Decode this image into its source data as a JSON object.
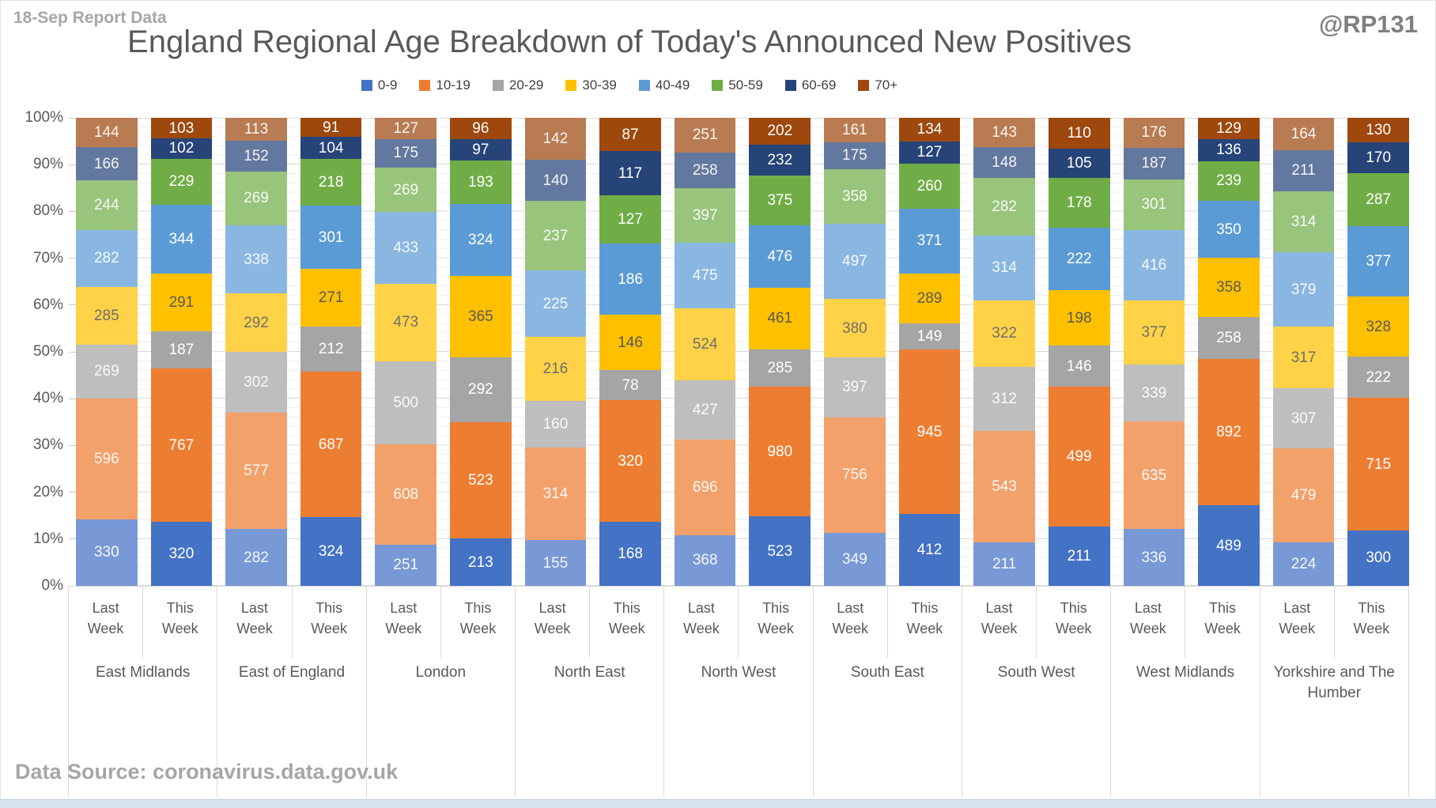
{
  "header": {
    "report_tag": "18-Sep Report Data",
    "handle": "@RP131",
    "title": "England Regional Age Breakdown of Today's Announced New Positives"
  },
  "footer": {
    "data_source": "Data Source: coronavirus.data.gov.uk"
  },
  "axis": {
    "y_ticks": [
      "0%",
      "10%",
      "20%",
      "30%",
      "40%",
      "50%",
      "60%",
      "70%",
      "80%",
      "90%",
      "100%"
    ],
    "week_labels": [
      "Last Week",
      "This Week"
    ]
  },
  "chart_data": {
    "type": "bar",
    "stacked": true,
    "normalized": "percent",
    "title": "England Regional Age Breakdown of Today's Announced New Positives",
    "ylabel": "",
    "ylim_percent": [
      0,
      100
    ],
    "grid": {
      "major_percent": 10,
      "minor_percent": 2
    },
    "legend_position": "top-center",
    "age_groups": [
      "0-9",
      "10-19",
      "20-29",
      "30-39",
      "40-49",
      "50-59",
      "60-69",
      "70+"
    ],
    "palette": {
      "0-9": "#4472C4",
      "10-19": "#ED7D31",
      "20-29": "#A5A5A5",
      "30-39": "#FFC000",
      "40-49": "#5B9BD5",
      "50-59": "#70AD47",
      "60-69": "#264478",
      "70+": "#9E480E"
    },
    "last_week_fade": 0.72,
    "regions": [
      {
        "name": "East Midlands",
        "last_week": [
          330,
          596,
          269,
          285,
          282,
          244,
          166,
          144
        ],
        "this_week": [
          320,
          767,
          187,
          291,
          344,
          229,
          102,
          103
        ]
      },
      {
        "name": "East of England",
        "last_week": [
          282,
          577,
          302,
          292,
          338,
          269,
          152,
          113
        ],
        "this_week": [
          324,
          687,
          212,
          271,
          301,
          218,
          104,
          91
        ]
      },
      {
        "name": "London",
        "last_week": [
          251,
          608,
          500,
          473,
          433,
          269,
          175,
          127
        ],
        "this_week": [
          213,
          523,
          292,
          365,
          324,
          193,
          97,
          96
        ]
      },
      {
        "name": "North East",
        "last_week": [
          155,
          314,
          160,
          216,
          225,
          237,
          140,
          142
        ],
        "this_week": [
          168,
          320,
          78,
          146,
          186,
          127,
          117,
          87
        ]
      },
      {
        "name": "North West",
        "last_week": [
          368,
          696,
          427,
          524,
          475,
          397,
          258,
          251
        ],
        "this_week": [
          523,
          980,
          285,
          461,
          476,
          375,
          232,
          202
        ]
      },
      {
        "name": "South East",
        "last_week": [
          349,
          756,
          397,
          380,
          497,
          358,
          175,
          161
        ],
        "this_week": [
          412,
          945,
          149,
          289,
          371,
          260,
          127,
          134
        ]
      },
      {
        "name": "South West",
        "last_week": [
          211,
          543,
          312,
          322,
          314,
          282,
          148,
          143
        ],
        "this_week": [
          211,
          499,
          146,
          198,
          222,
          178,
          105,
          110
        ]
      },
      {
        "name": "West Midlands",
        "last_week": [
          336,
          635,
          339,
          377,
          416,
          301,
          187,
          176
        ],
        "this_week": [
          489,
          892,
          258,
          358,
          350,
          239,
          136,
          129
        ]
      },
      {
        "name": "Yorkshire and The Humber",
        "last_week": [
          224,
          479,
          307,
          317,
          379,
          314,
          211,
          164
        ],
        "this_week": [
          300,
          715,
          222,
          328,
          377,
          287,
          170,
          130
        ]
      }
    ]
  }
}
